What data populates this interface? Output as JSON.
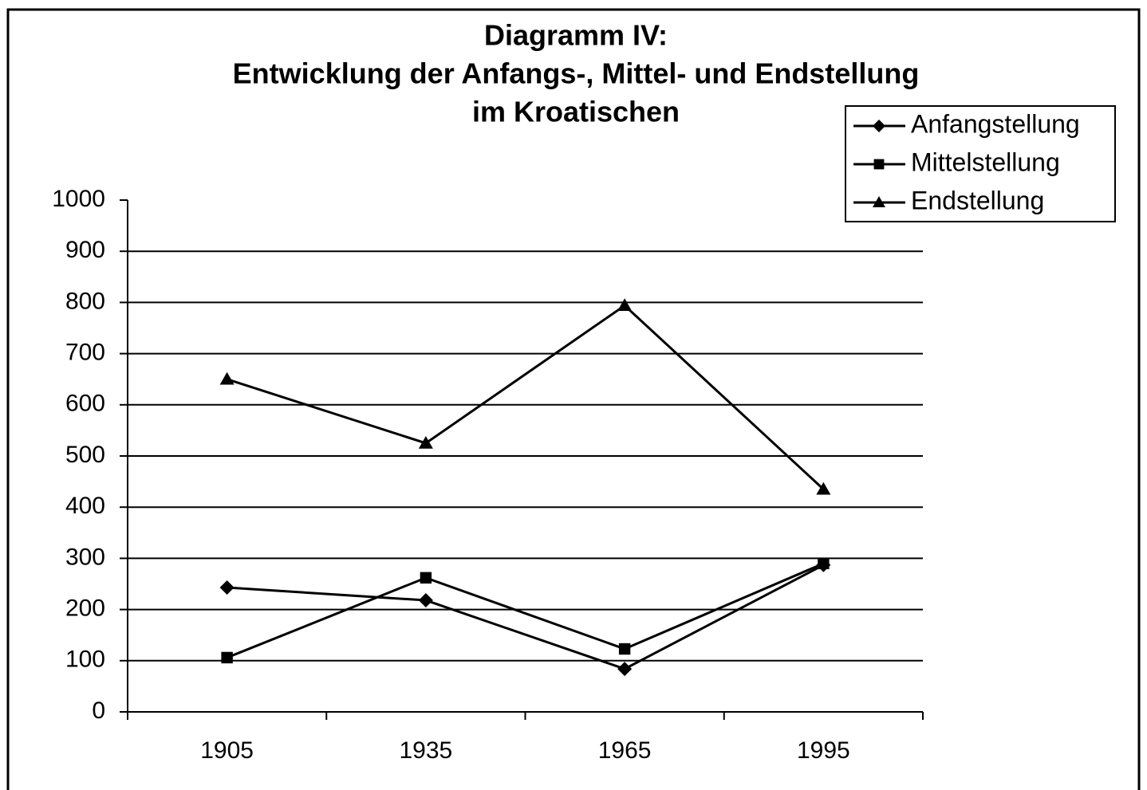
{
  "chart_data": {
    "type": "line",
    "title": [
      "Diagramm IV:",
      "Entwicklung der Anfangs-, Mittel- und Endstellung",
      "im Kroatischen"
    ],
    "categories": [
      "1905",
      "1935",
      "1965",
      "1995"
    ],
    "series": [
      {
        "name": "Anfangstellung",
        "color": "#000000",
        "marker": "diamond",
        "values": [
          243,
          218,
          84,
          287
        ]
      },
      {
        "name": "Mittelstellung",
        "color": "#000000",
        "marker": "square",
        "values": [
          106,
          262,
          123,
          290
        ]
      },
      {
        "name": "Endstellung",
        "color": "#000000",
        "marker": "triangle",
        "values": [
          650,
          525,
          794,
          435
        ]
      }
    ],
    "ylim": [
      0,
      1000
    ],
    "yticks": [
      0,
      100,
      200,
      300,
      400,
      500,
      600,
      700,
      800,
      900,
      1000
    ],
    "grid": true,
    "legend": "top-right"
  }
}
